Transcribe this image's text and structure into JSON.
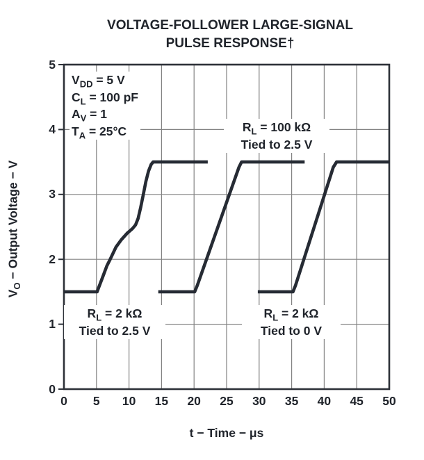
{
  "title": {
    "line1": "VOLTAGE-FOLLOWER LARGE-SIGNAL",
    "line2": "PULSE RESPONSE†"
  },
  "conditions": [
    {
      "sym": "V",
      "sub": "DD",
      "rest": " = 5 V"
    },
    {
      "sym": "C",
      "sub": "L",
      "rest": " = 100 pF"
    },
    {
      "sym": "A",
      "sub": "V",
      "rest": " = 1"
    },
    {
      "sym": "T",
      "sub": "A",
      "rest": " = 25°C"
    }
  ],
  "curve_labels": [
    {
      "sym": "R",
      "sub": "L",
      "rest": " = 100 kΩ",
      "line2": "Tied to 2.5 V"
    },
    {
      "sym": "R",
      "sub": "L",
      "rest": " = 2 kΩ",
      "line2": "Tied to 2.5 V"
    },
    {
      "sym": "R",
      "sub": "L",
      "rest": " = 2 kΩ",
      "line2": "Tied to 0 V"
    }
  ],
  "axes": {
    "x_label": "t − Time − μs",
    "y_label_sym": "V",
    "y_label_sub": "O",
    "y_label_rest": " − Output Voltage − V"
  },
  "colors": {
    "curve": "#262b34",
    "grid": "#828282",
    "border": "#2d3138",
    "text": "#20242b"
  },
  "chart_data": {
    "type": "line",
    "title": "VOLTAGE-FOLLOWER LARGE-SIGNAL PULSE RESPONSE†",
    "xlabel": "t − Time − μs",
    "ylabel": "VO − Output Voltage − V",
    "xlim": [
      0,
      50
    ],
    "ylim": [
      0,
      5
    ],
    "xticks": [
      0,
      5,
      10,
      15,
      20,
      25,
      30,
      35,
      40,
      45,
      50
    ],
    "yticks": [
      0,
      1,
      2,
      3,
      4,
      5
    ],
    "grid": true,
    "legend_position": "none",
    "series": [
      {
        "name": "RL = 2 kΩ Tied to 2.5 V",
        "points": [
          [
            0,
            1.5
          ],
          [
            5.1,
            1.5
          ],
          [
            5.4,
            1.58
          ],
          [
            6.0,
            1.74
          ],
          [
            6.6,
            1.9
          ],
          [
            7.1,
            2.0
          ],
          [
            8.0,
            2.19
          ],
          [
            8.8,
            2.3
          ],
          [
            9.7,
            2.4
          ],
          [
            10.5,
            2.47
          ],
          [
            11.0,
            2.53
          ],
          [
            11.4,
            2.63
          ],
          [
            11.8,
            2.8
          ],
          [
            12.2,
            3.0
          ],
          [
            12.6,
            3.2
          ],
          [
            13.0,
            3.36
          ],
          [
            13.4,
            3.46
          ],
          [
            13.7,
            3.5
          ],
          [
            22.1,
            3.5
          ]
        ]
      },
      {
        "name": "RL = 100 kΩ Tied to 2.5 V",
        "points": [
          [
            14.5,
            1.5
          ],
          [
            20.1,
            1.5
          ],
          [
            20.5,
            1.6
          ],
          [
            26.9,
            3.42
          ],
          [
            27.3,
            3.5
          ],
          [
            37.0,
            3.5
          ]
        ]
      },
      {
        "name": "RL = 2 kΩ Tied to 0 V",
        "points": [
          [
            29.8,
            1.5
          ],
          [
            35.2,
            1.5
          ],
          [
            35.6,
            1.6
          ],
          [
            41.4,
            3.42
          ],
          [
            41.9,
            3.5
          ],
          [
            50,
            3.5
          ]
        ]
      }
    ]
  }
}
